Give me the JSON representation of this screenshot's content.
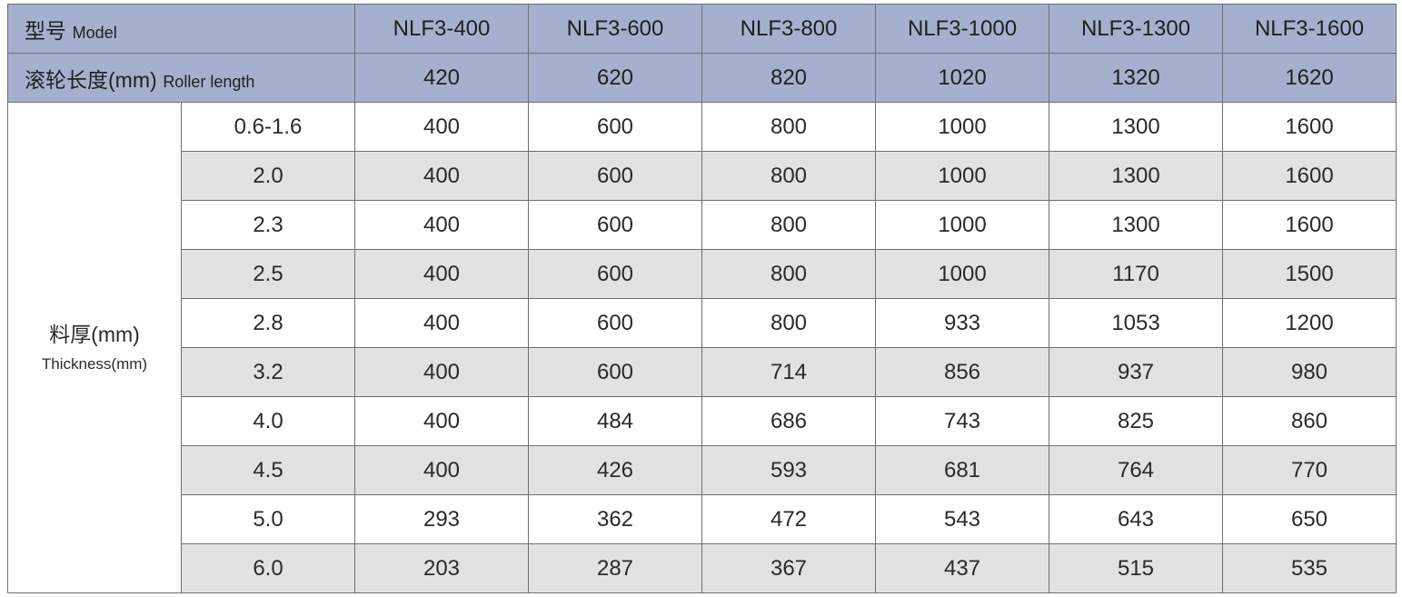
{
  "header": {
    "model_label_cn": "型号",
    "model_label_en": "Model",
    "roller_label_cn": "滚轮长度(mm)",
    "roller_label_en": "Roller length",
    "models": [
      "NLF3-400",
      "NLF3-600",
      "NLF3-800",
      "NLF3-1000",
      "NLF3-1300",
      "NLF3-1600"
    ],
    "roller_lengths": [
      "420",
      "620",
      "820",
      "1020",
      "1320",
      "1620"
    ]
  },
  "thickness": {
    "label_cn": "料厚(mm)",
    "label_en": "Thickness(mm)"
  },
  "rows": [
    {
      "thickness": "0.6-1.6",
      "values": [
        "400",
        "600",
        "800",
        "1000",
        "1300",
        "1600"
      ]
    },
    {
      "thickness": "2.0",
      "values": [
        "400",
        "600",
        "800",
        "1000",
        "1300",
        "1600"
      ]
    },
    {
      "thickness": "2.3",
      "values": [
        "400",
        "600",
        "800",
        "1000",
        "1300",
        "1600"
      ]
    },
    {
      "thickness": "2.5",
      "values": [
        "400",
        "600",
        "800",
        "1000",
        "1170",
        "1500"
      ]
    },
    {
      "thickness": "2.8",
      "values": [
        "400",
        "600",
        "800",
        "933",
        "1053",
        "1200"
      ]
    },
    {
      "thickness": "3.2",
      "values": [
        "400",
        "600",
        "714",
        "856",
        "937",
        "980"
      ]
    },
    {
      "thickness": "4.0",
      "values": [
        "400",
        "484",
        "686",
        "743",
        "825",
        "860"
      ]
    },
    {
      "thickness": "4.5",
      "values": [
        "400",
        "426",
        "593",
        "681",
        "764",
        "770"
      ]
    },
    {
      "thickness": "5.0",
      "values": [
        "293",
        "362",
        "472",
        "543",
        "643",
        "650"
      ]
    },
    {
      "thickness": "6.0",
      "values": [
        "203",
        "287",
        "367",
        "437",
        "515",
        "535"
      ]
    }
  ],
  "colors": {
    "header_bg": "#a5b0cf",
    "alt_row_bg": "#e2e2e2",
    "border": "#6f6f6f"
  }
}
